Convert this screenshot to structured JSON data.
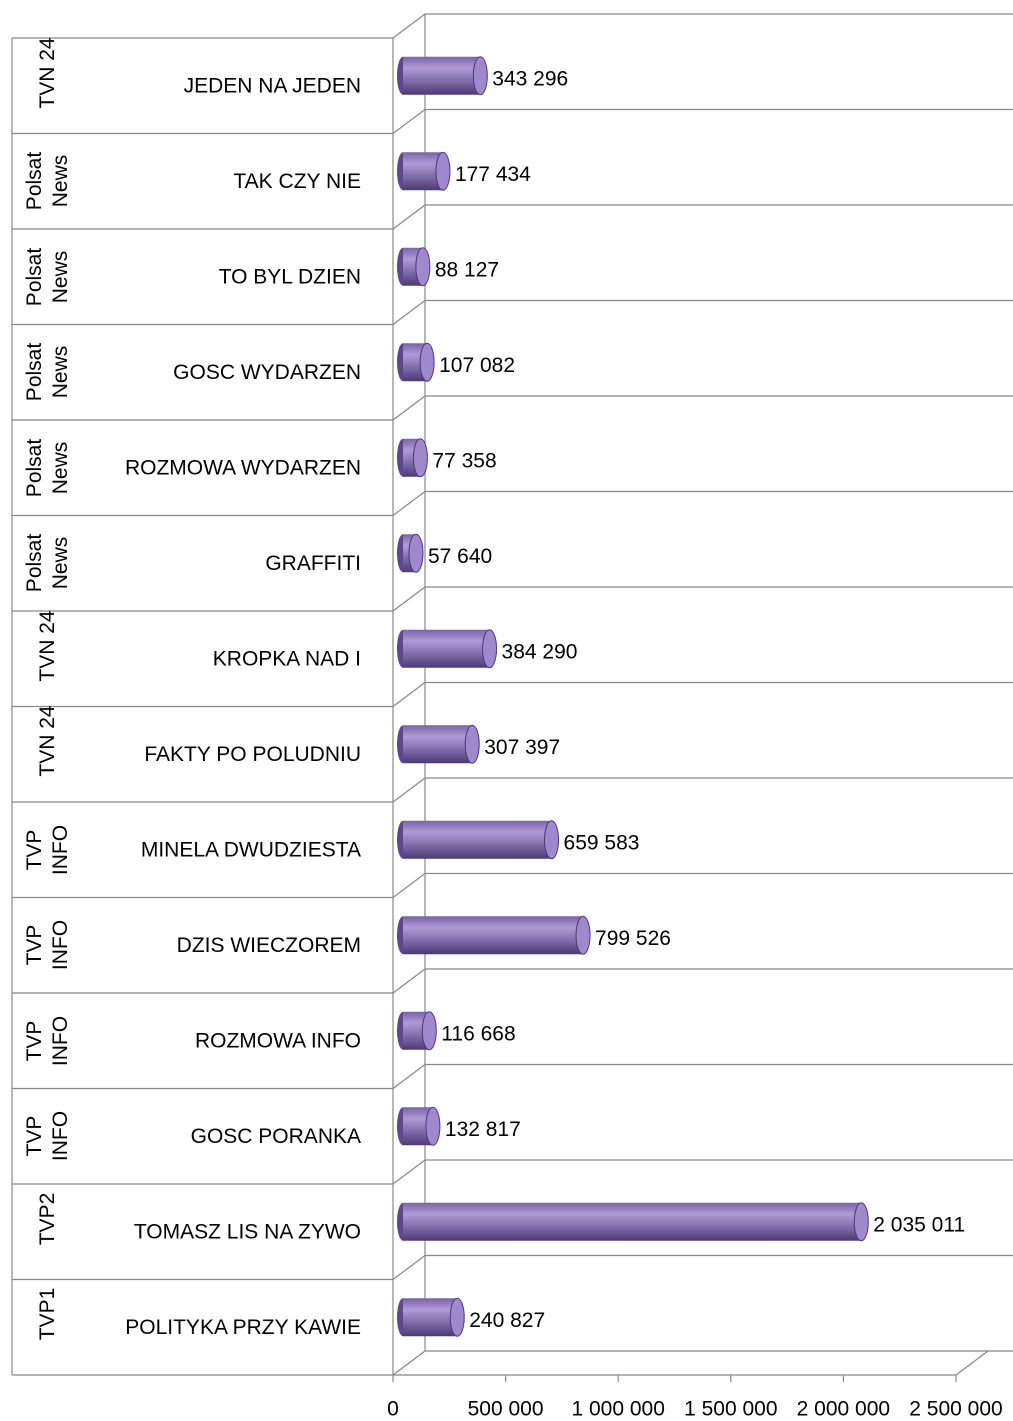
{
  "chart_data": {
    "type": "bar",
    "orientation": "horizontal",
    "color": "#8064a2",
    "channels": [
      "TVN 24",
      "Polsat News",
      "Polsat News",
      "Polsat News",
      "Polsat News",
      "Polsat News",
      "TVN 24",
      "TVN 24",
      "TVP INFO",
      "TVP INFO",
      "TVP INFO",
      "TVP INFO",
      "TVP2",
      "TVP1"
    ],
    "categories": [
      "JEDEN NA JEDEN",
      "TAK CZY NIE",
      "TO BYL DZIEN",
      "GOSC WYDARZEN",
      "ROZMOWA WYDARZEN",
      "GRAFFITI",
      "KROPKA NAD I",
      "FAKTY PO POLUDNIU",
      "MINELA DWUDZIESTA",
      "DZIS WIECZOREM",
      "ROZMOWA INFO",
      "GOSC PORANKA",
      "TOMASZ LIS NA ZYWO",
      "POLITYKA PRZY KAWIE"
    ],
    "values": [
      343296,
      177434,
      88127,
      107082,
      77358,
      57640,
      384290,
      307397,
      659583,
      799526,
      116668,
      132817,
      2035011,
      240827
    ],
    "value_labels": [
      "343 296",
      "177 434",
      "88 127",
      "107 082",
      "77 358",
      "57 640",
      "384 290",
      "307 397",
      "659 583",
      "799 526",
      "116 668",
      "132 817",
      "2 035 011",
      "240 827"
    ],
    "xlim": [
      0,
      2500000
    ],
    "xticks": [
      0,
      {
        "value": 500000,
        "label": "500 000"
      },
      {
        "value": 1000000,
        "label": "1 000 000"
      },
      {
        "value": 1500000,
        "label": "1 500 000"
      },
      {
        "value": 2000000,
        "label": "2 000 000"
      },
      {
        "value": 2500000,
        "label": "2 500 000"
      }
    ],
    "grid": true
  }
}
